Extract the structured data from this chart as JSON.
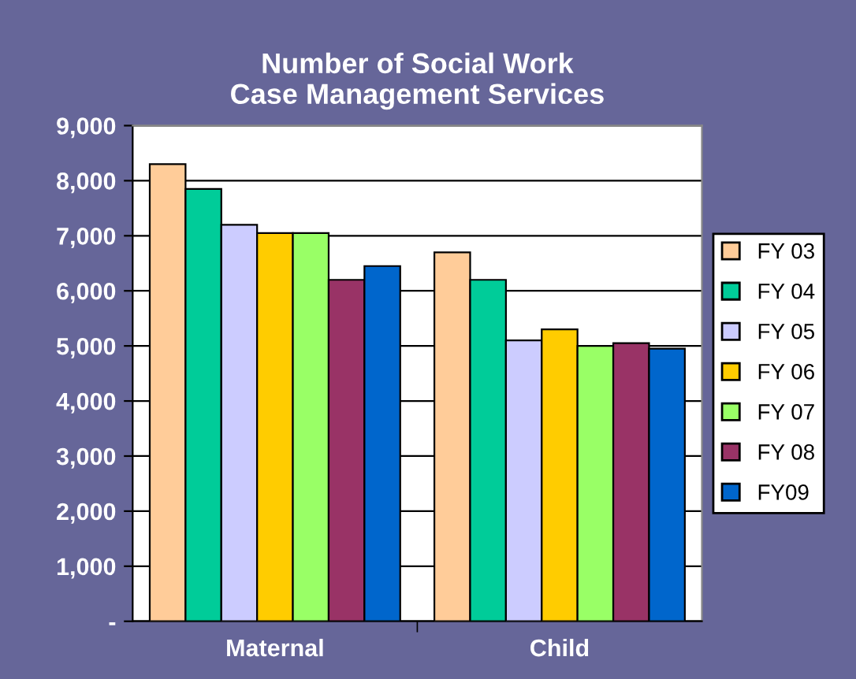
{
  "chart_data": {
    "type": "bar",
    "title": "Number of Social Work\nCase Management Services",
    "categories": [
      "Maternal",
      "Child"
    ],
    "series": [
      {
        "name": "FY 03",
        "color": "#ffcc99",
        "values": [
          8300,
          6700
        ]
      },
      {
        "name": "FY 04",
        "color": "#00cc99",
        "values": [
          7850,
          6200
        ]
      },
      {
        "name": "FY 05",
        "color": "#ccccff",
        "values": [
          7200,
          5100
        ]
      },
      {
        "name": "FY 06",
        "color": "#ffcc00",
        "values": [
          7050,
          5300
        ]
      },
      {
        "name": "FY 07",
        "color": "#99ff66",
        "values": [
          7050,
          5000
        ]
      },
      {
        "name": "FY 08",
        "color": "#993366",
        "values": [
          6200,
          5050
        ]
      },
      {
        "name": "FY09",
        "color": "#0066cc",
        "values": [
          6450,
          4950
        ]
      }
    ],
    "ylim": [
      0,
      9000
    ],
    "yticks": [
      {
        "value": 0,
        "label": "-"
      },
      {
        "value": 1000,
        "label": "1,000"
      },
      {
        "value": 2000,
        "label": "2,000"
      },
      {
        "value": 3000,
        "label": "3,000"
      },
      {
        "value": 4000,
        "label": "4,000"
      },
      {
        "value": 5000,
        "label": "5,000"
      },
      {
        "value": 6000,
        "label": "6,000"
      },
      {
        "value": 7000,
        "label": "7,000"
      },
      {
        "value": 8000,
        "label": "8,000"
      },
      {
        "value": 9000,
        "label": "9,000"
      }
    ],
    "grid": "y",
    "legend": "right"
  }
}
